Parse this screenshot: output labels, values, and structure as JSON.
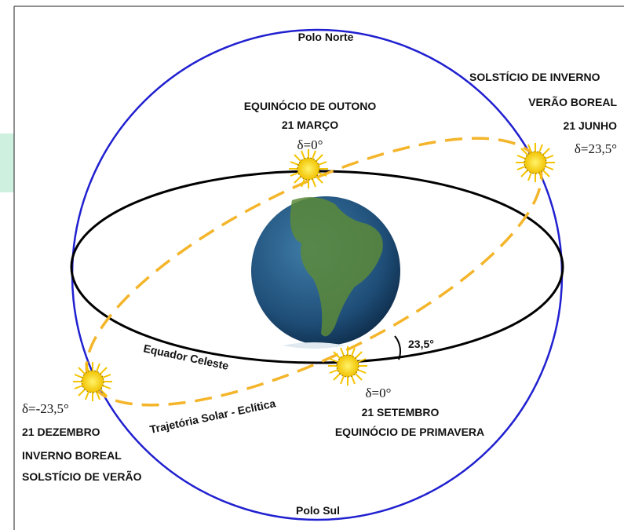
{
  "labels": {
    "north_pole": "Polo Norte",
    "south_pole": "Polo Sul",
    "autumn": [
      "EQUINÓCIO DE OUTONO",
      "21 MARÇO",
      "δ=0°"
    ],
    "june": [
      "SOLSTÍCIO DE INVERNO",
      "VERÃO BOREAL",
      "21 JUNHO",
      "δ=23,5°"
    ],
    "december": [
      "δ=-23,5°",
      "21 DEZEMBRO",
      "INVERNO BOREAL",
      "SOLSTÍCIO DE VERÃO"
    ],
    "spring": [
      "δ=0°",
      "21 SETEMBRO",
      "EQUINÓCIO DE PRIMAVERA"
    ],
    "equator": "Equador Celeste",
    "ecliptic": "Trajetória Solar - Eclítica",
    "angle": "23,5°"
  }
}
